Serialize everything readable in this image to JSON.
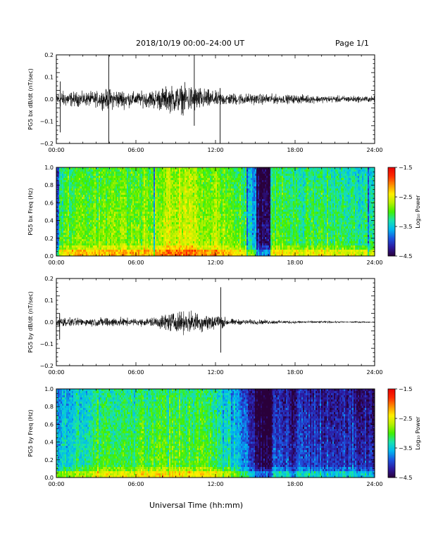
{
  "header": {
    "date_range": "2018/10/19   00:00–24:00 UT",
    "page": "Page 1/1"
  },
  "footer": {
    "xlabel": "Universal Time (hh:mm)"
  },
  "colors": {
    "trace": "#000000",
    "colormap": [
      "#2a003a",
      "#2c1aa0",
      "#1c55e0",
      "#00b8f0",
      "#18e2b0",
      "#40f000",
      "#b6f000",
      "#fff000",
      "#ff9000",
      "#ff2a00",
      "#e80000"
    ]
  },
  "chart_data": [
    {
      "type": "line",
      "ylabel": "PG5 bx dB/dt (nT/sec)",
      "xlim": [
        0,
        24
      ],
      "ylim": [
        -0.2,
        0.2
      ],
      "yticks": [
        "0.2",
        "0.1",
        "0.0",
        "−0.1",
        "−0.2"
      ],
      "xticks": [
        "00:00",
        "06:00",
        "12:00",
        "18:00",
        "24:00"
      ],
      "amplitude_envelope": {
        "hour": [
          0,
          1,
          2,
          3,
          4,
          5,
          6,
          7,
          8,
          9,
          10,
          11,
          12,
          13,
          14,
          15,
          16,
          17,
          18,
          19,
          20,
          21,
          22,
          23,
          24
        ],
        "value": [
          0.05,
          0.045,
          0.04,
          0.045,
          0.06,
          0.055,
          0.04,
          0.05,
          0.07,
          0.08,
          0.085,
          0.065,
          0.045,
          0.035,
          0.035,
          0.03,
          0.03,
          0.025,
          0.025,
          0.025,
          0.02,
          0.02,
          0.02,
          0.018,
          0.018
        ]
      },
      "spikes": [
        {
          "hour": 0.3,
          "min": -0.15,
          "max": 0.08
        },
        {
          "hour": 3.95,
          "min": -0.2,
          "max": 0.2
        },
        {
          "hour": 10.4,
          "min": -0.12,
          "max": 0.2
        },
        {
          "hour": 12.35,
          "min": -0.2,
          "max": 0.05
        }
      ]
    },
    {
      "type": "heatmap",
      "ylabel": "PG5 bx Freq (Hz)",
      "colorbar_label": "Log₁₀ Power",
      "xlim": [
        0,
        24
      ],
      "ylim": [
        0,
        1
      ],
      "yticks": [
        "1.0",
        "0.8",
        "0.6",
        "0.4",
        "0.2",
        "0.0"
      ],
      "xticks": [
        "00:00",
        "06:00",
        "12:00",
        "18:00",
        "24:00"
      ],
      "color_range": [
        -4.5,
        -1.5
      ],
      "colorbar_ticks": [
        "−1.5",
        "−2.5",
        "−3.5",
        "−4.5"
      ],
      "level_by_hour": {
        "hour": [
          0,
          1,
          2,
          3,
          4,
          5,
          6,
          7,
          8,
          9,
          10,
          11,
          12,
          13,
          14,
          15,
          16,
          17,
          18,
          19,
          20,
          21,
          22,
          23,
          24
        ],
        "log_power": [
          -3.0,
          -2.9,
          -2.9,
          -2.8,
          -2.8,
          -2.8,
          -2.8,
          -2.7,
          -2.6,
          -2.5,
          -2.5,
          -2.6,
          -2.7,
          -2.8,
          -2.9,
          -3.6,
          -3.0,
          -2.9,
          -3.0,
          -3.0,
          -3.0,
          -3.1,
          -3.1,
          -3.1,
          -3.2
        ]
      },
      "low_power_bands": [
        {
          "start": 0.0,
          "end": 0.2,
          "log_power": -3.8
        },
        {
          "start": 7.3,
          "end": 7.45,
          "log_power": -3.6
        },
        {
          "start": 14.35,
          "end": 14.45,
          "log_power": -3.8
        },
        {
          "start": 15.05,
          "end": 16.1,
          "log_power": -4.3
        },
        {
          "start": 23.5,
          "end": 23.6,
          "log_power": -3.8
        }
      ]
    },
    {
      "type": "line",
      "ylabel": "PG5 by dB/dt (nT/sec)",
      "xlim": [
        0,
        24
      ],
      "ylim": [
        -0.2,
        0.2
      ],
      "yticks": [
        "0.2",
        "0.1",
        "0.0",
        "−0.1",
        "−0.2"
      ],
      "xticks": [
        "00:00",
        "06:00",
        "12:00",
        "18:00",
        "24:00"
      ],
      "amplitude_envelope": {
        "hour": [
          0,
          1,
          2,
          3,
          4,
          5,
          6,
          7,
          8,
          9,
          10,
          11,
          12,
          13,
          14,
          15,
          16,
          17,
          18,
          19,
          20,
          21,
          22,
          23,
          24
        ],
        "value": [
          0.03,
          0.025,
          0.022,
          0.025,
          0.03,
          0.025,
          0.02,
          0.025,
          0.045,
          0.06,
          0.065,
          0.055,
          0.05,
          0.02,
          0.015,
          0.015,
          0.012,
          0.01,
          0.009,
          0.008,
          0.007,
          0.006,
          0.005,
          0.005,
          0.004
        ]
      },
      "spikes": [
        {
          "hour": 0.25,
          "min": -0.08,
          "max": 0.04
        },
        {
          "hour": 12.4,
          "min": -0.14,
          "max": 0.16
        }
      ]
    },
    {
      "type": "heatmap",
      "ylabel": "PG5 by Freq (Hz)",
      "colorbar_label": "Log₁₀ Power",
      "xlim": [
        0,
        24
      ],
      "ylim": [
        0,
        1
      ],
      "yticks": [
        "1.0",
        "0.8",
        "0.6",
        "0.4",
        "0.2",
        "0.0"
      ],
      "xticks": [
        "00:00",
        "06:00",
        "12:00",
        "18:00",
        "24:00"
      ],
      "color_range": [
        -4.5,
        -1.5
      ],
      "colorbar_ticks": [
        "−1.5",
        "−2.5",
        "−3.5",
        "−4.5"
      ],
      "level_by_hour": {
        "hour": [
          0,
          1,
          2,
          3,
          4,
          5,
          6,
          7,
          8,
          9,
          10,
          11,
          12,
          13,
          14,
          15,
          16,
          17,
          18,
          19,
          20,
          21,
          22,
          23,
          24
        ],
        "log_power": [
          -3.5,
          -3.3,
          -3.2,
          -3.1,
          -3.0,
          -3.0,
          -3.0,
          -3.0,
          -2.9,
          -2.9,
          -2.9,
          -3.0,
          -3.1,
          -3.3,
          -3.6,
          -4.0,
          -4.0,
          -3.9,
          -3.9,
          -3.9,
          -4.0,
          -4.0,
          -4.0,
          -4.1,
          -4.1
        ]
      },
      "low_power_bands": [
        {
          "start": 15.0,
          "end": 16.2,
          "log_power": -4.4
        },
        {
          "start": 17.5,
          "end": 18.0,
          "log_power": -4.2
        }
      ]
    }
  ]
}
